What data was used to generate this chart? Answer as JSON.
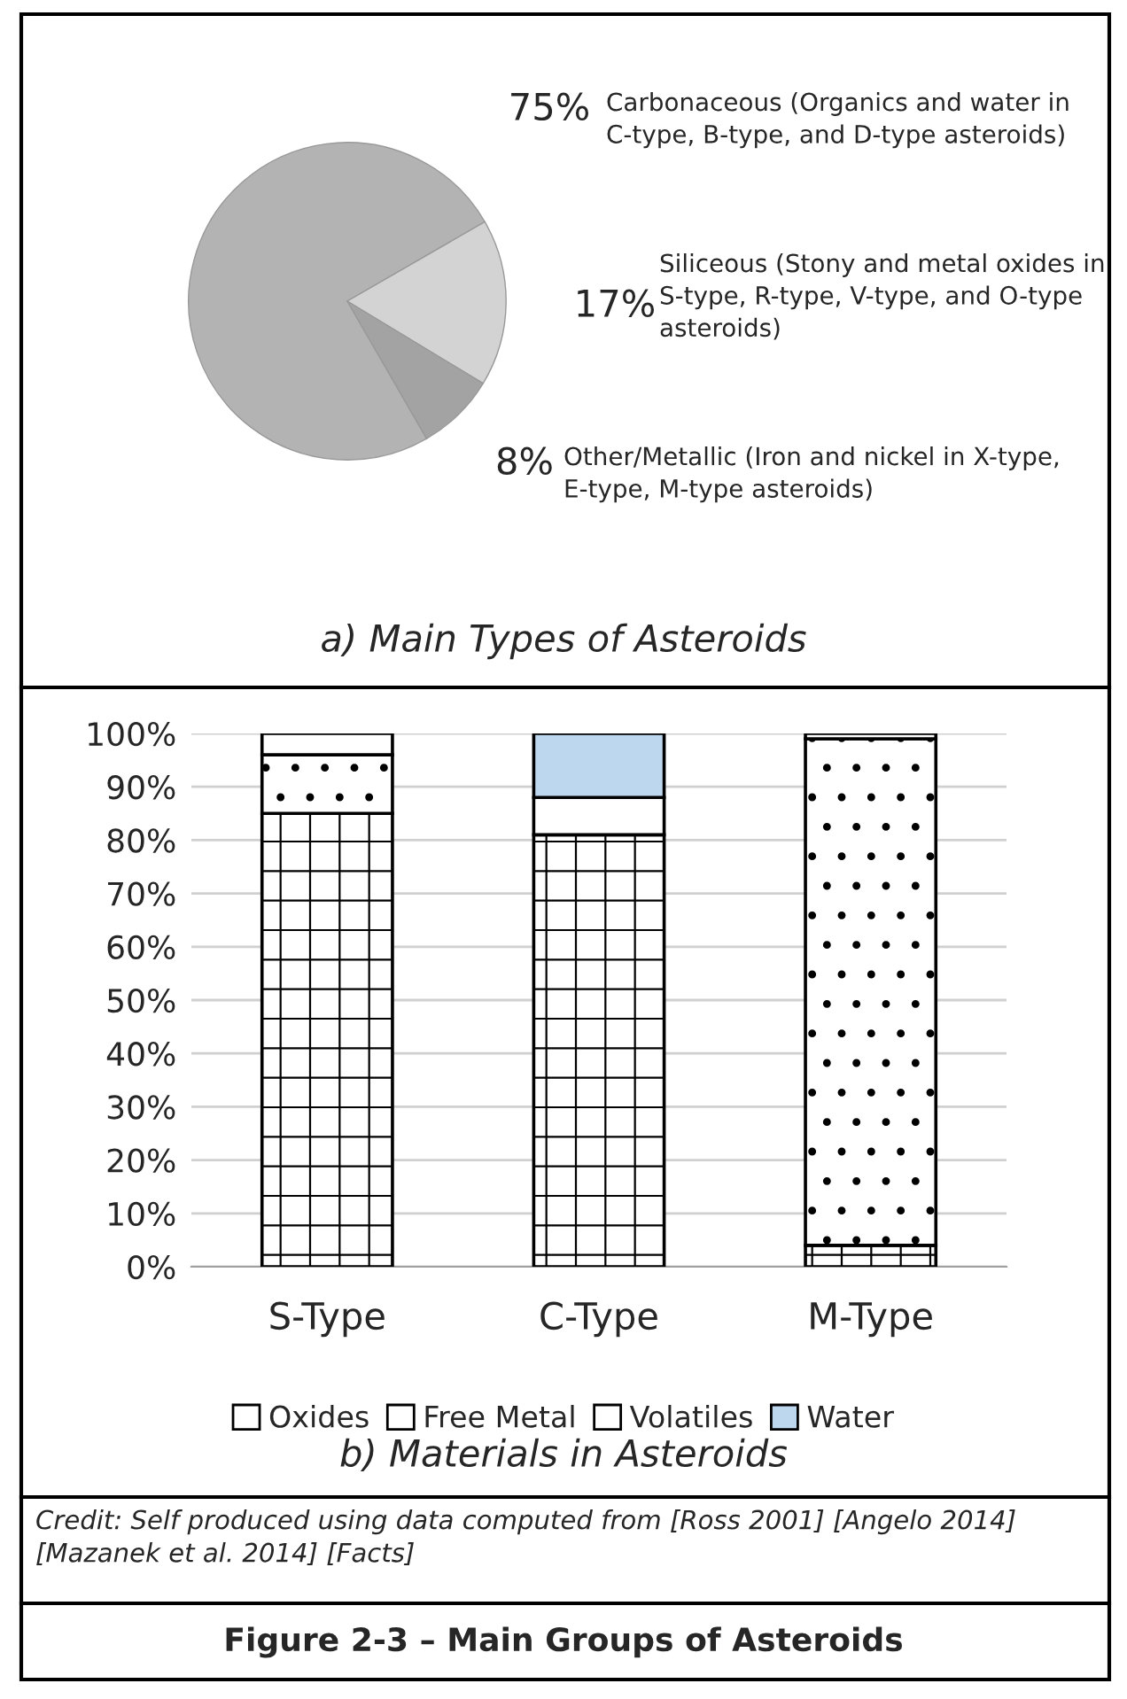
{
  "chart_data": [
    {
      "type": "pie",
      "title": "a) Main Types of Asteroids",
      "categories": [
        "Carbonaceous (Organics and water in C-type, B-type, and D-type asteroids)",
        "Siliceous (Stony and metal oxides in S-type, R-type, V-type, and O-type asteroids)",
        "Other/Metallic (Iron and nickel in X-type, E-type, M-type asteroids)"
      ],
      "values": [
        75,
        17,
        8
      ],
      "value_labels": [
        "75%",
        "17%",
        "8%"
      ],
      "colors": [
        "#b3b3b3",
        "#d3d3d3",
        "#a3a3a3"
      ]
    },
    {
      "type": "bar",
      "title": "b) Materials in Asteroids",
      "stacked": true,
      "categories": [
        "S-Type",
        "C-Type",
        "M-Type"
      ],
      "series": [
        {
          "name": "Oxides",
          "color": "#ffffff",
          "values": [
            85,
            81,
            4
          ]
        },
        {
          "name": "Free Metal",
          "color": "#ffffff",
          "values": [
            11,
            0,
            95
          ]
        },
        {
          "name": "Volatiles",
          "color": "#ffffff",
          "values": [
            4,
            7,
            1
          ]
        },
        {
          "name": "Water",
          "color": "#bdd7ee",
          "values": [
            0,
            12,
            0
          ]
        }
      ],
      "ylim": [
        0,
        100
      ],
      "yticks": [
        {
          "value": 0,
          "label": "0%"
        },
        {
          "value": 10,
          "label": "10%"
        },
        {
          "value": 20,
          "label": "20%"
        },
        {
          "value": 30,
          "label": "30%"
        },
        {
          "value": 40,
          "label": "40%"
        },
        {
          "value": 50,
          "label": "50%"
        },
        {
          "value": 60,
          "label": "60%"
        },
        {
          "value": 70,
          "label": "70%"
        },
        {
          "value": 80,
          "label": "80%"
        },
        {
          "value": 90,
          "label": "90%"
        },
        {
          "value": 100,
          "label": "100%"
        }
      ],
      "grid": "y",
      "legend": "bottom",
      "annotations": [
        "Credit: Self produced using data computed from [Ross 2001] [Angelo 2014] [Mazanek et al. 2014] [Facts]",
        "Figure 2-3 – Main Groups of Asteroids"
      ]
    }
  ]
}
